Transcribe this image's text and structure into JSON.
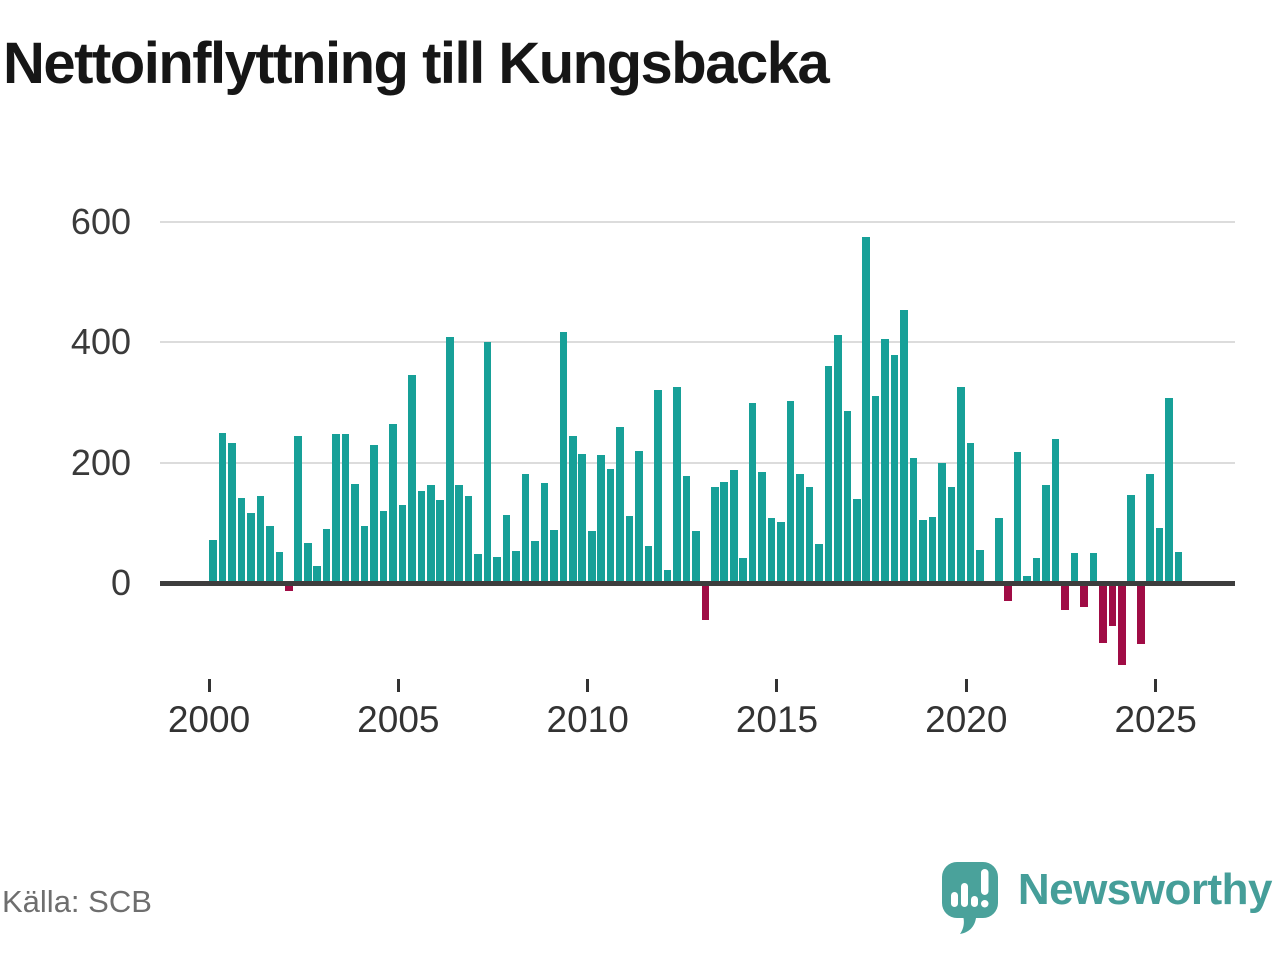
{
  "chart_data": {
    "type": "bar",
    "title": "Nettoinflyttning till Kungsbacka",
    "source": "Källa: SCB",
    "period_unit": "quarter",
    "start_period": "2000 Q1",
    "end_period": "2025 Q3",
    "values": [
      71,
      250,
      233,
      141,
      116,
      144,
      94,
      51,
      -13,
      245,
      66,
      28,
      89,
      247,
      248,
      164,
      94,
      229,
      119,
      264,
      129,
      346,
      153,
      163,
      138,
      409,
      163,
      144,
      49,
      401,
      43,
      113,
      54,
      181,
      69,
      166,
      88,
      417,
      244,
      214,
      86,
      212,
      190,
      259,
      112,
      220,
      62,
      320,
      21,
      325,
      178,
      86,
      -62,
      159,
      168,
      188,
      41,
      299,
      184,
      108,
      102,
      302,
      181,
      159,
      64,
      361,
      412,
      286,
      140,
      575,
      310,
      406,
      379,
      454,
      207,
      104,
      109,
      200,
      159,
      325,
      232,
      55,
      0,
      108,
      -30,
      217,
      11,
      42,
      163,
      240,
      -45,
      50,
      -40,
      50,
      -99,
      -72,
      -137,
      146,
      -102,
      181,
      91,
      307,
      52
    ],
    "y_ticks": [
      0,
      200,
      400,
      600
    ],
    "x_tick_labels": [
      "2000",
      "2005",
      "2010",
      "2015",
      "2020",
      "2025"
    ],
    "ylim": [
      -160,
      620
    ],
    "grid": true,
    "legend": "none",
    "positive_color": "#17a098",
    "negative_color": "#a00c45",
    "gridline_color": "#dcdcdc",
    "axis_color": "#3d3d3d",
    "label_color": "#333333"
  },
  "branding": {
    "logo_text": "Newsworthy",
    "logo_color": "#459e99",
    "icon_color": "#4aa29b"
  }
}
